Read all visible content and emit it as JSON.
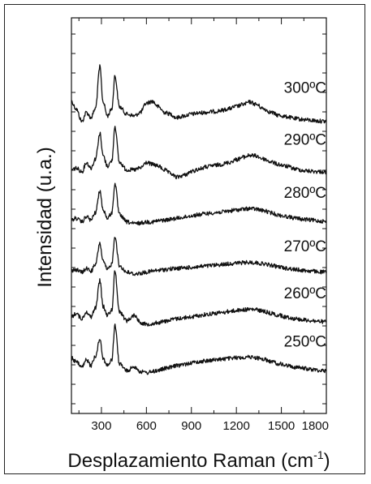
{
  "chart_data": {
    "type": "line",
    "xlabel": "Desplazamiento Raman (cm",
    "xlabel_superscript": "-1",
    "xlabel_suffix": ")",
    "ylabel": "Intensidad (u.a.)",
    "xlim": [
      100,
      1800
    ],
    "xticks": [
      300,
      600,
      900,
      1200,
      1500,
      1800
    ],
    "y_axis_ticks_labeled": false,
    "grid": false,
    "legend": "none",
    "line_color": "#111111",
    "series": [
      {
        "name": "300ºC",
        "offset": 5,
        "x": [
          100,
          130,
          170,
          200,
          230,
          260,
          290,
          310,
          340,
          370,
          390,
          420,
          470,
          520,
          560,
          600,
          640,
          680,
          720,
          760,
          800,
          850,
          900,
          950,
          1000,
          1050,
          1100,
          1150,
          1200,
          1250,
          1290,
          1330,
          1380,
          1430,
          1480,
          1530,
          1600,
          1650,
          1700,
          1750,
          1800
        ],
        "y": [
          0.6,
          0.4,
          0.05,
          0.3,
          0.15,
          0.4,
          1.55,
          0.6,
          0.2,
          0.4,
          1.3,
          0.45,
          0.25,
          0.2,
          0.3,
          0.55,
          0.6,
          0.45,
          0.3,
          0.25,
          0.15,
          0.2,
          0.25,
          0.28,
          0.3,
          0.32,
          0.35,
          0.4,
          0.46,
          0.52,
          0.58,
          0.52,
          0.4,
          0.3,
          0.22,
          0.18,
          0.12,
          0.1,
          0.08,
          0.06,
          0.05
        ]
      },
      {
        "name": "290ºC",
        "offset": 4,
        "x": [
          100,
          130,
          170,
          200,
          230,
          260,
          290,
          310,
          340,
          370,
          390,
          420,
          470,
          520,
          560,
          600,
          640,
          680,
          720,
          760,
          800,
          850,
          900,
          950,
          1000,
          1050,
          1100,
          1150,
          1200,
          1250,
          1290,
          1330,
          1380,
          1430,
          1480,
          1530,
          1600,
          1650,
          1700,
          1750,
          1800
        ],
        "y": [
          0.1,
          0.15,
          0.05,
          0.3,
          0.15,
          0.4,
          1.1,
          0.5,
          0.2,
          0.35,
          1.3,
          0.3,
          0.1,
          0.1,
          0.15,
          0.3,
          0.25,
          0.2,
          0.1,
          0.0,
          -0.1,
          -0.05,
          0.05,
          0.12,
          0.18,
          0.22,
          0.25,
          0.3,
          0.38,
          0.45,
          0.5,
          0.48,
          0.4,
          0.32,
          0.25,
          0.2,
          0.12,
          0.08,
          0.06,
          0.05,
          0.04
        ]
      },
      {
        "name": "280ºC",
        "offset": 3,
        "x": [
          100,
          130,
          170,
          200,
          230,
          260,
          290,
          310,
          340,
          370,
          390,
          420,
          470,
          520,
          560,
          600,
          640,
          680,
          720,
          760,
          800,
          850,
          900,
          950,
          1000,
          1050,
          1100,
          1150,
          1200,
          1250,
          1290,
          1330,
          1380,
          1430,
          1480,
          1530,
          1600,
          1650,
          1700,
          1750,
          1800
        ],
        "y": [
          0.1,
          0.15,
          0.05,
          0.2,
          0.1,
          0.3,
          0.9,
          0.4,
          0.15,
          0.3,
          1.1,
          0.25,
          0.05,
          0.0,
          0.02,
          0.05,
          0.05,
          0.08,
          0.1,
          0.12,
          0.15,
          0.18,
          0.22,
          0.25,
          0.28,
          0.3,
          0.32,
          0.35,
          0.38,
          0.4,
          0.42,
          0.4,
          0.36,
          0.3,
          0.24,
          0.2,
          0.15,
          0.12,
          0.1,
          0.08,
          0.06
        ]
      },
      {
        "name": "270ºC",
        "offset": 2,
        "x": [
          100,
          130,
          170,
          200,
          230,
          260,
          290,
          310,
          340,
          370,
          390,
          420,
          470,
          520,
          560,
          600,
          640,
          680,
          720,
          760,
          800,
          850,
          900,
          950,
          1000,
          1050,
          1100,
          1150,
          1200,
          1250,
          1290,
          1330,
          1380,
          1430,
          1480,
          1530,
          1600,
          1650,
          1700,
          1750,
          1800
        ],
        "y": [
          0.1,
          0.12,
          0.05,
          0.15,
          0.08,
          0.25,
          0.85,
          0.35,
          0.12,
          0.28,
          1.05,
          0.22,
          0.05,
          0.0,
          0.02,
          0.05,
          0.08,
          0.1,
          0.12,
          0.14,
          0.15,
          0.17,
          0.18,
          0.2,
          0.22,
          0.24,
          0.26,
          0.28,
          0.3,
          0.31,
          0.32,
          0.31,
          0.28,
          0.24,
          0.2,
          0.16,
          0.12,
          0.1,
          0.08,
          0.06,
          0.05
        ]
      },
      {
        "name": "260ºC",
        "offset": 1,
        "x": [
          100,
          130,
          170,
          200,
          230,
          260,
          290,
          310,
          340,
          370,
          390,
          420,
          470,
          520,
          560,
          600,
          640,
          680,
          720,
          760,
          800,
          850,
          900,
          950,
          1000,
          1050,
          1100,
          1150,
          1200,
          1250,
          1290,
          1330,
          1380,
          1430,
          1480,
          1530,
          1600,
          1650,
          1700,
          1750,
          1800
        ],
        "y": [
          0.2,
          0.3,
          0.15,
          0.35,
          0.2,
          0.45,
          1.2,
          0.5,
          0.25,
          0.4,
          1.45,
          0.35,
          0.1,
          0.25,
          0.05,
          0.0,
          0.02,
          0.05,
          0.08,
          0.12,
          0.15,
          0.18,
          0.2,
          0.24,
          0.27,
          0.3,
          0.32,
          0.35,
          0.38,
          0.4,
          0.41,
          0.4,
          0.36,
          0.3,
          0.25,
          0.2,
          0.15,
          0.12,
          0.1,
          0.08,
          0.06
        ]
      },
      {
        "name": "250ºC",
        "offset": 0,
        "x": [
          100,
          130,
          170,
          200,
          230,
          260,
          290,
          310,
          340,
          370,
          390,
          420,
          470,
          520,
          560,
          600,
          640,
          680,
          720,
          760,
          800,
          850,
          900,
          950,
          1000,
          1050,
          1100,
          1150,
          1200,
          1250,
          1290,
          1330,
          1380,
          1430,
          1480,
          1530,
          1600,
          1650,
          1700,
          1750,
          1800
        ],
        "y": [
          0.45,
          0.35,
          0.2,
          0.4,
          0.25,
          0.5,
          1.0,
          0.45,
          0.25,
          0.4,
          1.35,
          0.3,
          0.1,
          0.22,
          0.08,
          0.05,
          0.08,
          0.12,
          0.16,
          0.2,
          0.24,
          0.28,
          0.32,
          0.35,
          0.38,
          0.4,
          0.42,
          0.44,
          0.46,
          0.47,
          0.48,
          0.46,
          0.42,
          0.36,
          0.3,
          0.25,
          0.2,
          0.17,
          0.14,
          0.12,
          0.1
        ]
      }
    ]
  }
}
